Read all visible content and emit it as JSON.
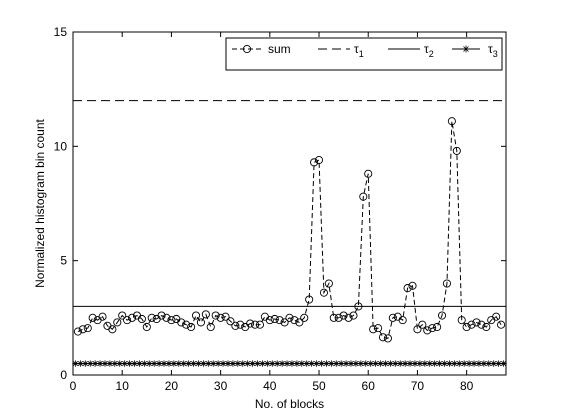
{
  "chart_data": {
    "type": "line",
    "xlabel": "No. of blocks",
    "ylabel": "Normalized histogram bin count",
    "xlim": [
      0,
      88
    ],
    "ylim": [
      0,
      15
    ],
    "x_ticks": [
      0,
      10,
      20,
      30,
      40,
      50,
      60,
      70,
      80
    ],
    "y_ticks": [
      0,
      5,
      10,
      15
    ],
    "grid": false,
    "legend_position": "top-right",
    "legend": [
      {
        "label": "sum",
        "style": "dashed-circle"
      },
      {
        "label": "τ",
        "sub": "1",
        "style": "long-dash"
      },
      {
        "label": "τ",
        "sub": "2",
        "style": "solid"
      },
      {
        "label": "τ",
        "sub": "3",
        "style": "star"
      }
    ],
    "series": [
      {
        "name": "sum",
        "x": [
          1,
          2,
          3,
          4,
          5,
          6,
          7,
          8,
          9,
          10,
          11,
          12,
          13,
          14,
          15,
          16,
          17,
          18,
          19,
          20,
          21,
          22,
          23,
          24,
          25,
          26,
          27,
          28,
          29,
          30,
          31,
          32,
          33,
          34,
          35,
          36,
          37,
          38,
          39,
          40,
          41,
          42,
          43,
          44,
          45,
          46,
          47,
          48,
          49,
          50,
          51,
          52,
          53,
          54,
          55,
          56,
          57,
          58,
          59,
          60,
          61,
          62,
          63,
          64,
          65,
          66,
          67,
          68,
          69,
          70,
          71,
          72,
          73,
          74,
          75,
          76,
          77,
          78,
          79,
          80,
          81,
          82,
          83,
          84,
          85,
          86,
          87
        ],
        "y": [
          1.9,
          2.0,
          2.05,
          2.5,
          2.4,
          2.55,
          2.15,
          2.0,
          2.3,
          2.6,
          2.4,
          2.5,
          2.6,
          2.45,
          2.1,
          2.5,
          2.45,
          2.6,
          2.5,
          2.4,
          2.45,
          2.3,
          2.2,
          2.1,
          2.6,
          2.3,
          2.65,
          2.1,
          2.6,
          2.5,
          2.55,
          2.35,
          2.15,
          2.2,
          2.1,
          2.25,
          2.2,
          2.2,
          2.55,
          2.4,
          2.45,
          2.4,
          2.3,
          2.5,
          2.4,
          2.3,
          2.5,
          3.3,
          9.3,
          9.4,
          3.6,
          4.0,
          2.5,
          2.5,
          2.6,
          2.5,
          2.6,
          3.0,
          7.8,
          8.8,
          2.0,
          2.05,
          1.65,
          1.6,
          2.5,
          2.55,
          2.4,
          3.8,
          3.9,
          2.0,
          2.2,
          1.95,
          2.05,
          2.1,
          2.6,
          4.0,
          11.1,
          9.8,
          2.4,
          2.1,
          2.2,
          2.3,
          2.2,
          2.1,
          2.4,
          2.55,
          2.2
        ]
      },
      {
        "name": "τ1",
        "value": 12.0
      },
      {
        "name": "τ2",
        "value": 3.0
      },
      {
        "name": "τ3",
        "value": 0.5
      }
    ]
  }
}
